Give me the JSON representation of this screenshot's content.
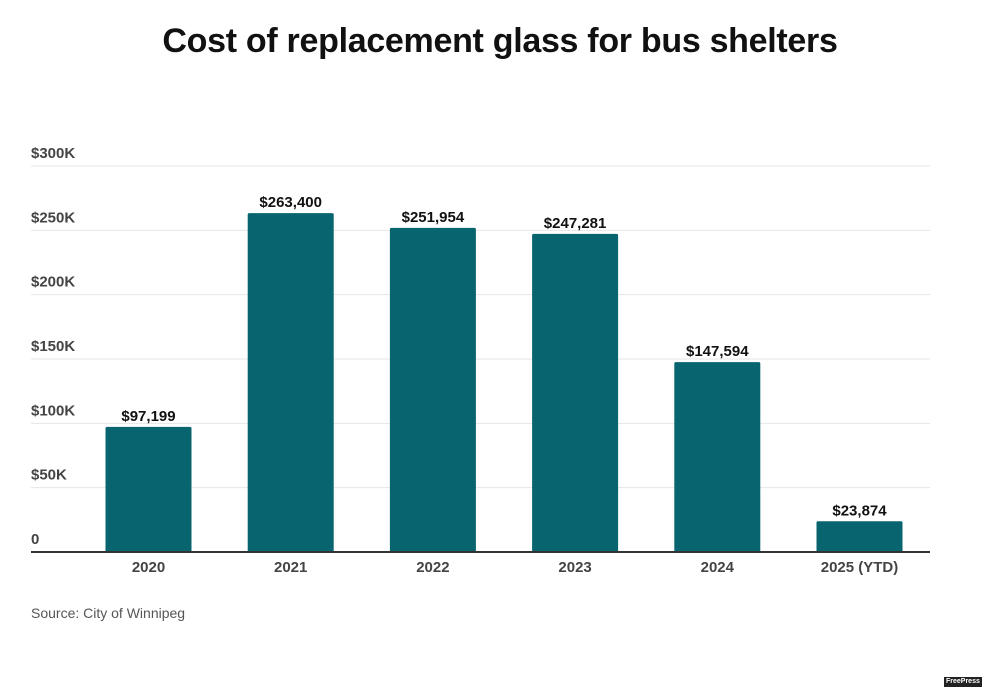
{
  "chart_data": {
    "type": "bar",
    "title": "Cost of replacement glass for bus shelters",
    "xlabel": "",
    "ylabel": "",
    "categories": [
      "2020",
      "2021",
      "2022",
      "2023",
      "2024",
      "2025 (YTD)"
    ],
    "values": [
      97199,
      263400,
      251954,
      247281,
      147594,
      23874
    ],
    "data_labels": [
      "$97,199",
      "$263,400",
      "$251,954",
      "$247,281",
      "$147,594",
      "$23,874"
    ],
    "ylim": [
      0,
      300000
    ],
    "yticks": [
      0,
      50000,
      100000,
      150000,
      200000,
      250000,
      300000
    ],
    "ytick_labels": [
      "0",
      "$50K",
      "$100K",
      "$150K",
      "$200K",
      "$250K",
      "$300K"
    ],
    "grid": true,
    "legend": "none",
    "bar_color": "#08656f"
  },
  "source": "Source: City of Winnipeg",
  "logo": "FreePress"
}
